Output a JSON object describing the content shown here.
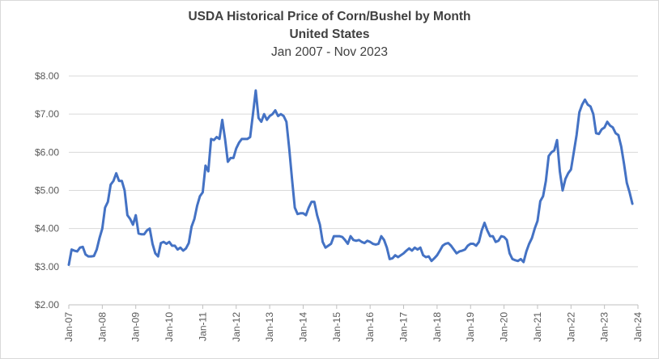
{
  "chart_data": {
    "type": "line",
    "title": "USDA Historical Price of Corn/Bushel by Month",
    "subtitle": "United States",
    "subtitle2": "Jan 2007 - Nov 2023",
    "xlabel": "",
    "ylabel": "",
    "ylim": [
      2.0,
      8.0
    ],
    "xlim": [
      "2007-01",
      "2024-01"
    ],
    "y_ticks": [
      "$2.00",
      "$3.00",
      "$4.00",
      "$5.00",
      "$6.00",
      "$7.00",
      "$8.00"
    ],
    "y_tick_values": [
      2,
      3,
      4,
      5,
      6,
      7,
      8
    ],
    "x_ticks": [
      "Jan-07",
      "Jan-08",
      "Jan-09",
      "Jan-10",
      "Jan-11",
      "Jan-12",
      "Jan-13",
      "Jan-14",
      "Jan-15",
      "Jan-16",
      "Jan-17",
      "Jan-18",
      "Jan-19",
      "Jan-20",
      "Jan-21",
      "Jan-22",
      "Jan-23",
      "Jan-24"
    ],
    "grid": "horizontal",
    "legend": "none",
    "line_color": "#4472c4",
    "series": [
      {
        "x": [
          "2007-01",
          "2007-02",
          "2007-03",
          "2007-04",
          "2007-05",
          "2007-06",
          "2007-07",
          "2007-08",
          "2007-09",
          "2007-10",
          "2007-11",
          "2007-12",
          "2008-01",
          "2008-02",
          "2008-03",
          "2008-04",
          "2008-05",
          "2008-06",
          "2008-07",
          "2008-08",
          "2008-09",
          "2008-10",
          "2008-11",
          "2008-12",
          "2009-01",
          "2009-02",
          "2009-03",
          "2009-04",
          "2009-05",
          "2009-06",
          "2009-07",
          "2009-08",
          "2009-09",
          "2009-10",
          "2009-11",
          "2009-12",
          "2010-01",
          "2010-02",
          "2010-03",
          "2010-04",
          "2010-05",
          "2010-06",
          "2010-07",
          "2010-08",
          "2010-09",
          "2010-10",
          "2010-11",
          "2010-12",
          "2011-01",
          "2011-02",
          "2011-03",
          "2011-04",
          "2011-05",
          "2011-06",
          "2011-07",
          "2011-08",
          "2011-09",
          "2011-10",
          "2011-11",
          "2011-12",
          "2012-01",
          "2012-02",
          "2012-03",
          "2012-04",
          "2012-05",
          "2012-06",
          "2012-07",
          "2012-08",
          "2012-09",
          "2012-10",
          "2012-11",
          "2012-12",
          "2013-01",
          "2013-02",
          "2013-03",
          "2013-04",
          "2013-05",
          "2013-06",
          "2013-07",
          "2013-08",
          "2013-09",
          "2013-10",
          "2013-11",
          "2013-12",
          "2014-01",
          "2014-02",
          "2014-03",
          "2014-04",
          "2014-05",
          "2014-06",
          "2014-07",
          "2014-08",
          "2014-09",
          "2014-10",
          "2014-11",
          "2014-12",
          "2015-01",
          "2015-02",
          "2015-03",
          "2015-04",
          "2015-05",
          "2015-06",
          "2015-07",
          "2015-08",
          "2015-09",
          "2015-10",
          "2015-11",
          "2015-12",
          "2016-01",
          "2016-02",
          "2016-03",
          "2016-04",
          "2016-05",
          "2016-06",
          "2016-07",
          "2016-08",
          "2016-09",
          "2016-10",
          "2016-11",
          "2016-12",
          "2017-01",
          "2017-02",
          "2017-03",
          "2017-04",
          "2017-05",
          "2017-06",
          "2017-07",
          "2017-08",
          "2017-09",
          "2017-10",
          "2017-11",
          "2017-12",
          "2018-01",
          "2018-02",
          "2018-03",
          "2018-04",
          "2018-05",
          "2018-06",
          "2018-07",
          "2018-08",
          "2018-09",
          "2018-10",
          "2018-11",
          "2018-12",
          "2019-01",
          "2019-02",
          "2019-03",
          "2019-04",
          "2019-05",
          "2019-06",
          "2019-07",
          "2019-08",
          "2019-09",
          "2019-10",
          "2019-11",
          "2019-12",
          "2020-01",
          "2020-02",
          "2020-03",
          "2020-04",
          "2020-05",
          "2020-06",
          "2020-07",
          "2020-08",
          "2020-09",
          "2020-10",
          "2020-11",
          "2020-12",
          "2021-01",
          "2021-02",
          "2021-03",
          "2021-04",
          "2021-05",
          "2021-06",
          "2021-07",
          "2021-08",
          "2021-09",
          "2021-10",
          "2021-11",
          "2021-12",
          "2022-01",
          "2022-02",
          "2022-03",
          "2022-04",
          "2022-05",
          "2022-06",
          "2022-07",
          "2022-08",
          "2022-09",
          "2022-10",
          "2022-11",
          "2022-12",
          "2023-01",
          "2023-02",
          "2023-03",
          "2023-04",
          "2023-05",
          "2023-06",
          "2023-07",
          "2023-08",
          "2023-09",
          "2023-10",
          "2023-11"
        ],
        "values": [
          3.05,
          3.45,
          3.42,
          3.4,
          3.5,
          3.52,
          3.32,
          3.27,
          3.27,
          3.28,
          3.45,
          3.75,
          4.0,
          4.55,
          4.7,
          5.15,
          5.25,
          5.45,
          5.25,
          5.25,
          5.0,
          4.35,
          4.25,
          4.1,
          4.35,
          3.87,
          3.85,
          3.85,
          3.95,
          4.0,
          3.6,
          3.35,
          3.27,
          3.62,
          3.65,
          3.6,
          3.65,
          3.55,
          3.55,
          3.45,
          3.5,
          3.42,
          3.48,
          3.62,
          4.05,
          4.25,
          4.6,
          4.85,
          4.95,
          5.65,
          5.5,
          6.35,
          6.32,
          6.4,
          6.35,
          6.85,
          6.35,
          5.75,
          5.85,
          5.85,
          6.1,
          6.25,
          6.35,
          6.35,
          6.35,
          6.4,
          7.0,
          7.62,
          6.9,
          6.8,
          7.0,
          6.85,
          6.95,
          7.0,
          7.1,
          6.95,
          7.0,
          6.95,
          6.8,
          6.1,
          5.3,
          4.55,
          4.38,
          4.4,
          4.4,
          4.35,
          4.55,
          4.7,
          4.7,
          4.35,
          4.1,
          3.65,
          3.5,
          3.55,
          3.6,
          3.8,
          3.8,
          3.8,
          3.78,
          3.7,
          3.6,
          3.8,
          3.7,
          3.68,
          3.7,
          3.65,
          3.62,
          3.68,
          3.65,
          3.6,
          3.58,
          3.6,
          3.8,
          3.7,
          3.5,
          3.2,
          3.22,
          3.3,
          3.25,
          3.3,
          3.35,
          3.42,
          3.48,
          3.42,
          3.5,
          3.45,
          3.5,
          3.3,
          3.25,
          3.27,
          3.15,
          3.22,
          3.3,
          3.42,
          3.55,
          3.6,
          3.62,
          3.55,
          3.45,
          3.35,
          3.4,
          3.42,
          3.45,
          3.55,
          3.6,
          3.6,
          3.55,
          3.65,
          3.95,
          4.15,
          3.95,
          3.8,
          3.8,
          3.65,
          3.68,
          3.8,
          3.78,
          3.7,
          3.35,
          3.2,
          3.17,
          3.15,
          3.2,
          3.12,
          3.4,
          3.6,
          3.75,
          4.0,
          4.2,
          4.72,
          4.85,
          5.25,
          5.9,
          6.0,
          6.05,
          6.32,
          5.5,
          5.0,
          5.3,
          5.45,
          5.55,
          6.0,
          6.45,
          7.05,
          7.25,
          7.38,
          7.25,
          7.2,
          7.0,
          6.5,
          6.48,
          6.6,
          6.65,
          6.8,
          6.7,
          6.65,
          6.5,
          6.45,
          6.15,
          5.7,
          5.2,
          4.95,
          4.65
        ]
      }
    ]
  }
}
